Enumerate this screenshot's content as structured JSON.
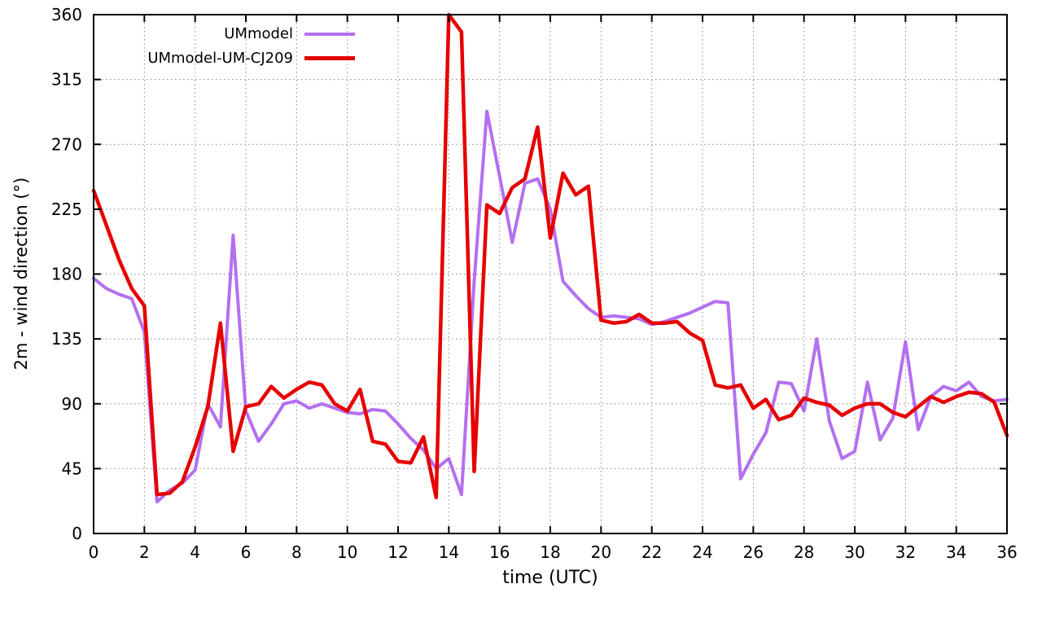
{
  "page": {
    "background": "#ffffff"
  },
  "chart_data": {
    "type": "line",
    "title": "",
    "xlabel": "time (UTC)",
    "ylabel": "2m - wind direction (°)",
    "xlim": [
      0,
      36
    ],
    "ylim": [
      0,
      360
    ],
    "xticks": [
      0,
      2,
      4,
      6,
      8,
      10,
      12,
      14,
      16,
      18,
      20,
      22,
      24,
      26,
      28,
      30,
      32,
      34,
      36
    ],
    "yticks": [
      0,
      45,
      90,
      135,
      180,
      225,
      270,
      315,
      360
    ],
    "grid": true,
    "legend_position": "top-left-inside",
    "x_start": 0,
    "x_step": 0.5,
    "axis_color": "#000000",
    "grid_color": "#888888",
    "series": [
      {
        "name": "UMmodel",
        "color": "#b470f0",
        "width": 4,
        "values": [
          177,
          170,
          166,
          163,
          140,
          22,
          30,
          35,
          44,
          90,
          74,
          207,
          85,
          64,
          76,
          90,
          92,
          87,
          90,
          87,
          84,
          83,
          86,
          85,
          76,
          66,
          58,
          45,
          52,
          27,
          175,
          293,
          248,
          202,
          243,
          246,
          225,
          175,
          165,
          156,
          150,
          151,
          150,
          149,
          145,
          147,
          150,
          153,
          157,
          161,
          160,
          38,
          55,
          70,
          105,
          104,
          85,
          135,
          78,
          52,
          57,
          105,
          65,
          80,
          133,
          72,
          95,
          102,
          99,
          105,
          95,
          92,
          93
        ]
      },
      {
        "name": "UMmodel-UM-CJ209",
        "color": "#e60000",
        "width": 4.5,
        "values": [
          238,
          214,
          190,
          170,
          158,
          27,
          28,
          36,
          60,
          88,
          146,
          57,
          88,
          90,
          102,
          94,
          100,
          105,
          103,
          90,
          85,
          100,
          64,
          62,
          50,
          49,
          67,
          25,
          360,
          348,
          43,
          228,
          222,
          240,
          246,
          282,
          205,
          250,
          235,
          241,
          148,
          146,
          147,
          152,
          146,
          146,
          147,
          139,
          134,
          103,
          101,
          103,
          87,
          93,
          79,
          82,
          94,
          91,
          89,
          82,
          87,
          90,
          90,
          84,
          81,
          88,
          95,
          91,
          95,
          98,
          97,
          91,
          68
        ]
      }
    ]
  }
}
